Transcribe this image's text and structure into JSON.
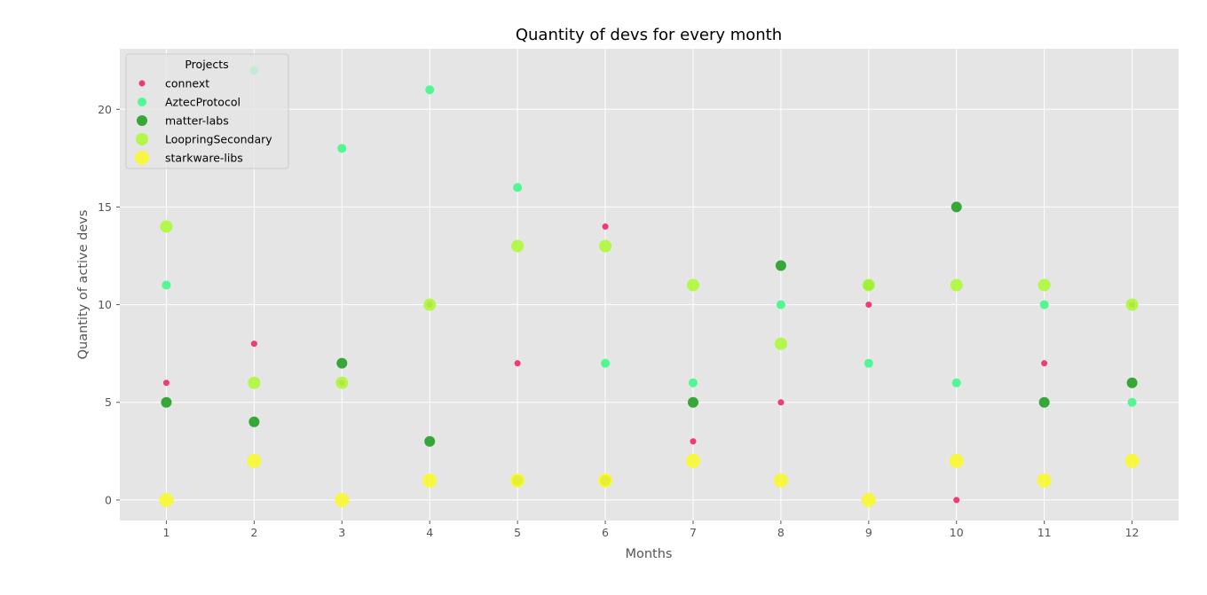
{
  "chart_data": {
    "type": "scatter",
    "title": "Quantity of devs for every month",
    "xlabel": "Months",
    "ylabel": "Quantity of active devs",
    "x": [
      1,
      2,
      3,
      4,
      5,
      6,
      7,
      8,
      9,
      10,
      11,
      12
    ],
    "xlim": [
      0.47,
      12.53
    ],
    "ylim": [
      -1.05,
      23.1
    ],
    "xticks": [
      1,
      2,
      3,
      4,
      5,
      6,
      7,
      8,
      9,
      10,
      11,
      12
    ],
    "yticks": [
      0,
      5,
      10,
      15,
      20
    ],
    "grid": true,
    "legend": {
      "title": "Projects",
      "position": "top-left"
    },
    "series": [
      {
        "name": "connext",
        "color": "#f0266c",
        "values": [
          6,
          8,
          6,
          10,
          7,
          14,
          3,
          5,
          10,
          0,
          7,
          10
        ]
      },
      {
        "name": "AztecProtocol",
        "color": "#3ff88a",
        "values": [
          11,
          22,
          18,
          21,
          16,
          7,
          6,
          10,
          7,
          6,
          10,
          5
        ]
      },
      {
        "name": "matter-labs",
        "color": "#22a022",
        "values": [
          5,
          4,
          7,
          3,
          1,
          1,
          5,
          12,
          11,
          15,
          5,
          6
        ]
      },
      {
        "name": "LoopringSecondary",
        "color": "#adf83a",
        "values": [
          14,
          6,
          6,
          10,
          13,
          13,
          11,
          8,
          11,
          11,
          11,
          10
        ]
      },
      {
        "name": "starkware-libs",
        "color": "#f8f830",
        "values": [
          0,
          2,
          0,
          1,
          1,
          1,
          2,
          1,
          0,
          2,
          1,
          2
        ]
      }
    ]
  }
}
